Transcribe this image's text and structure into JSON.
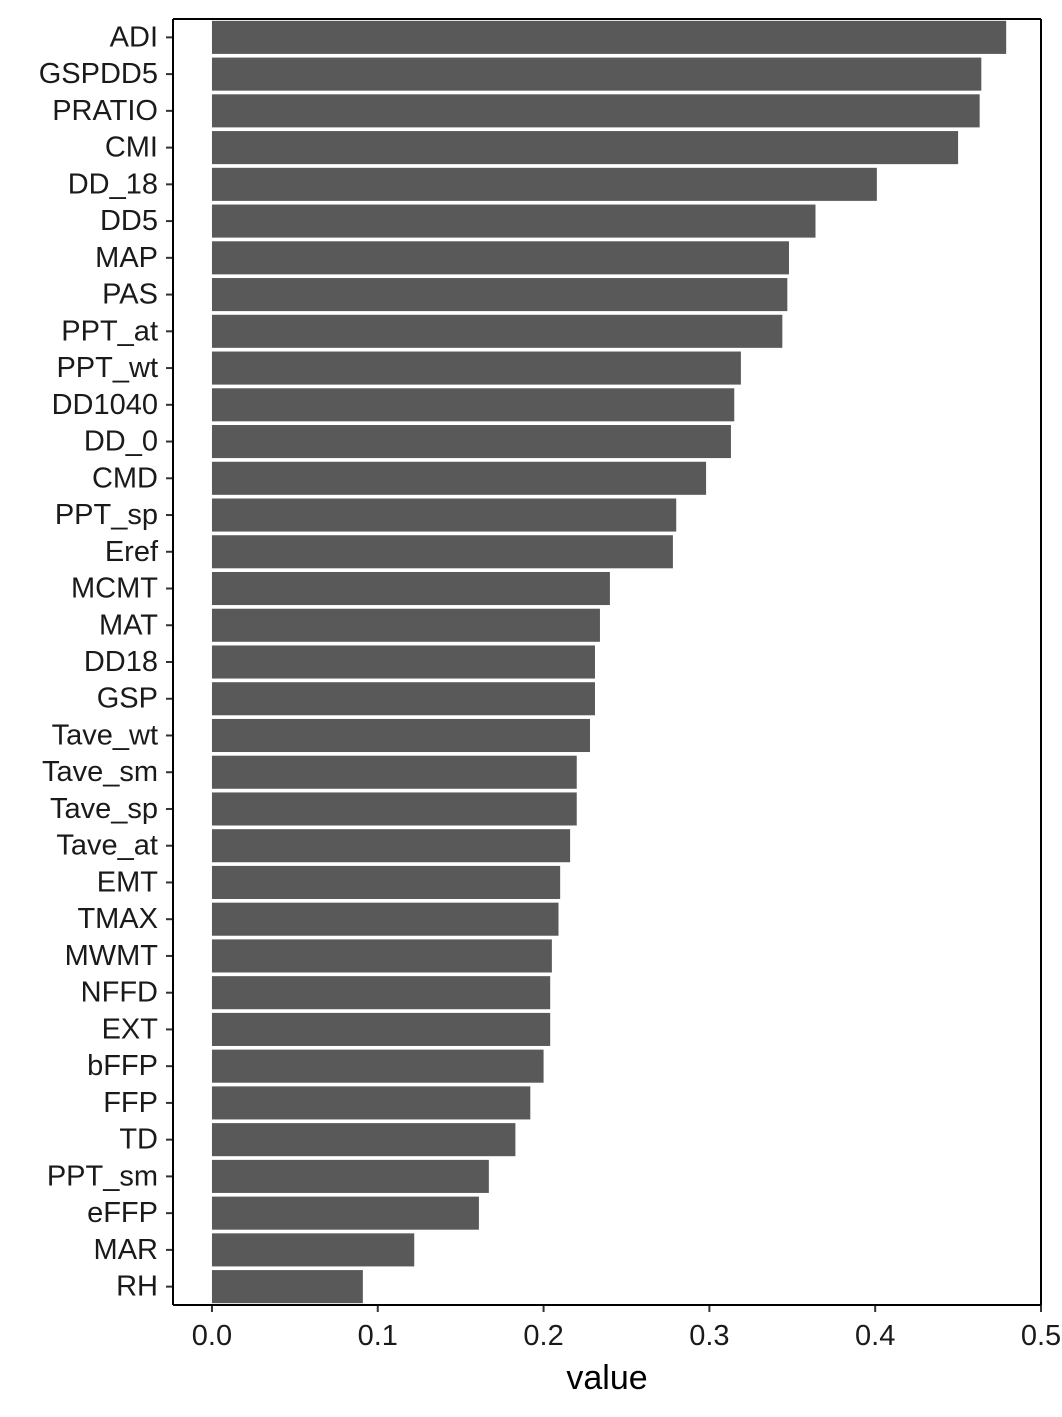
{
  "chart_data": {
    "type": "bar",
    "orientation": "horizontal",
    "xlabel": "value",
    "ylabel": "",
    "xlim": [
      -0.0235,
      0.5
    ],
    "xticks": [
      {
        "value": 0.0,
        "label": "0.0"
      },
      {
        "value": 0.1,
        "label": "0.1"
      },
      {
        "value": 0.2,
        "label": "0.2"
      },
      {
        "value": 0.3,
        "label": "0.3"
      },
      {
        "value": 0.4,
        "label": "0.4"
      },
      {
        "value": 0.5,
        "label": "0.5"
      }
    ],
    "grid": false,
    "bar_color": "#595959",
    "categories": [
      "ADI",
      "GSPDD5",
      "PRATIO",
      "CMI",
      "DD_18",
      "DD5",
      "MAP",
      "PAS",
      "PPT_at",
      "PPT_wt",
      "DD1040",
      "DD_0",
      "CMD",
      "PPT_sp",
      "Eref",
      "MCMT",
      "MAT",
      "DD18",
      "GSP",
      "Tave_wt",
      "Tave_sm",
      "Tave_sp",
      "Tave_at",
      "EMT",
      "TMAX",
      "MWMT",
      "NFFD",
      "EXT",
      "bFFP",
      "FFP",
      "TD",
      "PPT_sm",
      "eFFP",
      "MAR",
      "RH"
    ],
    "values": [
      0.479,
      0.464,
      0.463,
      0.45,
      0.401,
      0.364,
      0.348,
      0.347,
      0.344,
      0.319,
      0.315,
      0.313,
      0.298,
      0.28,
      0.278,
      0.24,
      0.234,
      0.231,
      0.231,
      0.228,
      0.22,
      0.22,
      0.216,
      0.21,
      0.209,
      0.205,
      0.204,
      0.204,
      0.2,
      0.192,
      0.183,
      0.167,
      0.161,
      0.122,
      0.091
    ]
  }
}
